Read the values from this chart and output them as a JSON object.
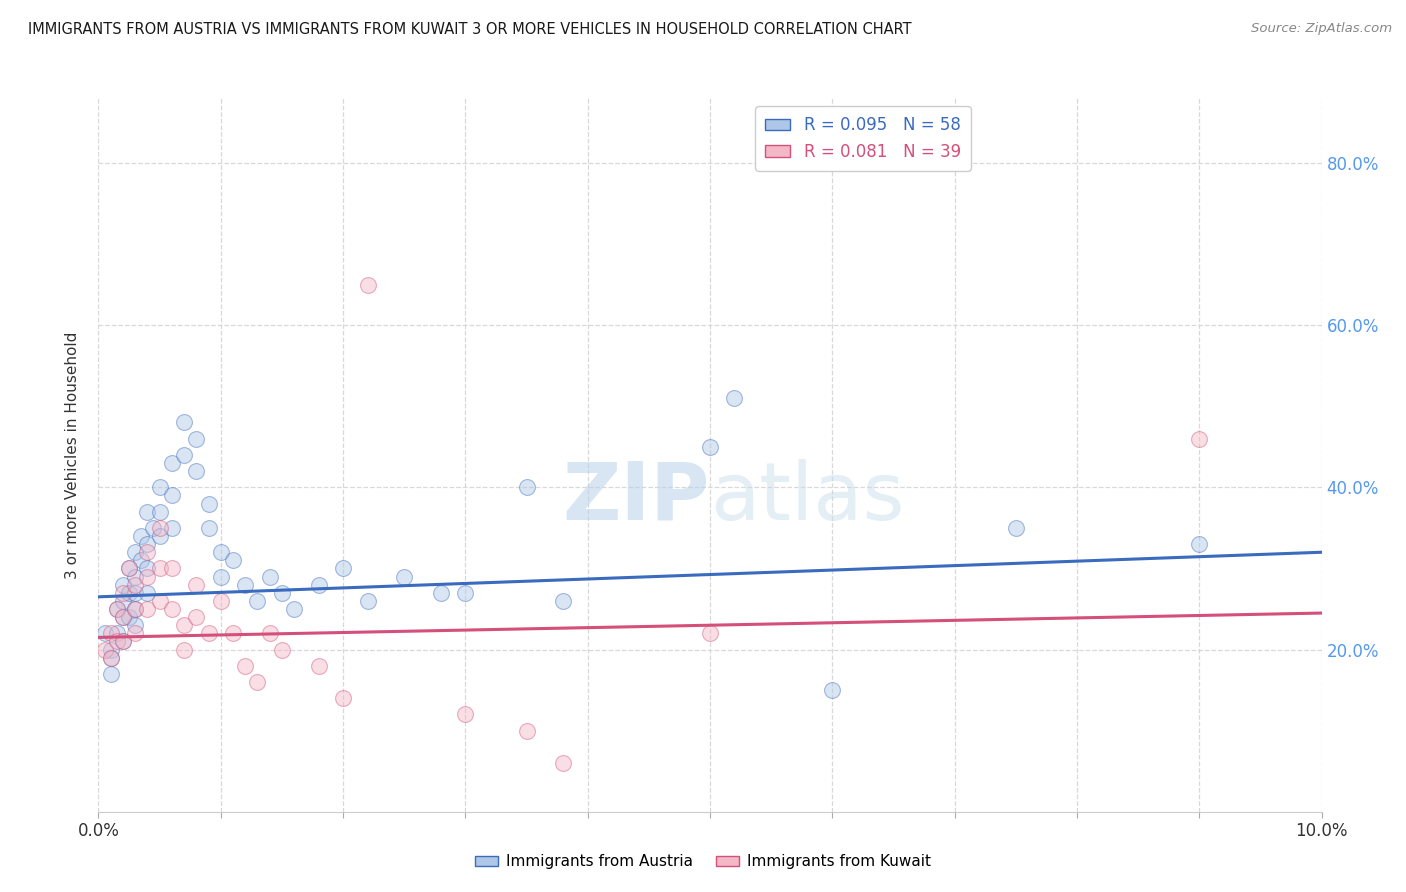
{
  "title": "IMMIGRANTS FROM AUSTRIA VS IMMIGRANTS FROM KUWAIT 3 OR MORE VEHICLES IN HOUSEHOLD CORRELATION CHART",
  "source": "Source: ZipAtlas.com",
  "ylabel": "3 or more Vehicles in Household",
  "right_yticks": [
    "80.0%",
    "60.0%",
    "40.0%",
    "20.0%"
  ],
  "right_ytick_vals": [
    0.8,
    0.6,
    0.4,
    0.2
  ],
  "austria_R": 0.095,
  "austria_N": 58,
  "kuwait_R": 0.081,
  "kuwait_N": 39,
  "austria_color": "#aec6e8",
  "kuwait_color": "#f2b8c6",
  "austria_line_color": "#3a6bbf",
  "kuwait_line_color": "#d44f7a",
  "background_color": "#ffffff",
  "grid_color": "#d8d8d8",
  "title_color": "#1a1a1a",
  "right_axis_color": "#5599ee",
  "xmin": 0.0,
  "xmax": 0.1,
  "ymin": 0.0,
  "ymax": 0.88,
  "austria_x": [
    0.0005,
    0.001,
    0.001,
    0.001,
    0.0015,
    0.0015,
    0.002,
    0.002,
    0.002,
    0.002,
    0.0025,
    0.0025,
    0.0025,
    0.003,
    0.003,
    0.003,
    0.003,
    0.003,
    0.0035,
    0.0035,
    0.004,
    0.004,
    0.004,
    0.004,
    0.0045,
    0.005,
    0.005,
    0.005,
    0.006,
    0.006,
    0.006,
    0.007,
    0.007,
    0.008,
    0.008,
    0.009,
    0.009,
    0.01,
    0.01,
    0.011,
    0.012,
    0.013,
    0.014,
    0.015,
    0.016,
    0.018,
    0.02,
    0.022,
    0.025,
    0.028,
    0.03,
    0.035,
    0.038,
    0.05,
    0.052,
    0.06,
    0.075,
    0.09
  ],
  "austria_y": [
    0.22,
    0.2,
    0.19,
    0.17,
    0.25,
    0.22,
    0.28,
    0.26,
    0.24,
    0.21,
    0.3,
    0.27,
    0.24,
    0.32,
    0.29,
    0.27,
    0.25,
    0.23,
    0.34,
    0.31,
    0.37,
    0.33,
    0.3,
    0.27,
    0.35,
    0.4,
    0.37,
    0.34,
    0.43,
    0.39,
    0.35,
    0.48,
    0.44,
    0.46,
    0.42,
    0.38,
    0.35,
    0.32,
    0.29,
    0.31,
    0.28,
    0.26,
    0.29,
    0.27,
    0.25,
    0.28,
    0.3,
    0.26,
    0.29,
    0.27,
    0.27,
    0.4,
    0.26,
    0.45,
    0.51,
    0.15,
    0.35,
    0.33
  ],
  "kuwait_x": [
    0.0005,
    0.001,
    0.001,
    0.0015,
    0.0015,
    0.002,
    0.002,
    0.002,
    0.0025,
    0.003,
    0.003,
    0.003,
    0.004,
    0.004,
    0.004,
    0.005,
    0.005,
    0.005,
    0.006,
    0.006,
    0.007,
    0.007,
    0.008,
    0.008,
    0.009,
    0.01,
    0.011,
    0.012,
    0.013,
    0.014,
    0.015,
    0.018,
    0.02,
    0.022,
    0.03,
    0.035,
    0.038,
    0.05,
    0.09
  ],
  "kuwait_y": [
    0.2,
    0.22,
    0.19,
    0.25,
    0.21,
    0.27,
    0.24,
    0.21,
    0.3,
    0.28,
    0.25,
    0.22,
    0.32,
    0.29,
    0.25,
    0.35,
    0.3,
    0.26,
    0.3,
    0.25,
    0.23,
    0.2,
    0.28,
    0.24,
    0.22,
    0.26,
    0.22,
    0.18,
    0.16,
    0.22,
    0.2,
    0.18,
    0.14,
    0.65,
    0.12,
    0.1,
    0.06,
    0.22,
    0.46
  ],
  "watermark_zip": "ZIP",
  "watermark_atlas": "atlas",
  "marker_size": 130,
  "marker_alpha": 0.45
}
